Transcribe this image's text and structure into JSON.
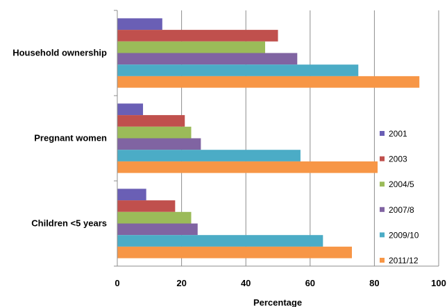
{
  "chart_data": {
    "type": "bar",
    "orientation": "horizontal",
    "categories": [
      "Household ownership",
      "Pregnant women",
      "Children <5 years"
    ],
    "series": [
      {
        "name": "2001",
        "color": "#6a5fb5",
        "values": [
          14,
          8,
          9
        ]
      },
      {
        "name": "2003",
        "color": "#c0504d",
        "values": [
          50,
          21,
          18
        ]
      },
      {
        "name": "2004/5",
        "color": "#9bbb59",
        "values": [
          46,
          23,
          23
        ]
      },
      {
        "name": "2007/8",
        "color": "#8064a2",
        "values": [
          56,
          26,
          25
        ]
      },
      {
        "name": "2009/10",
        "color": "#4bacc6",
        "values": [
          75,
          57,
          64
        ]
      },
      {
        "name": "2011/12",
        "color": "#f79646",
        "values": [
          94,
          81,
          73
        ]
      }
    ],
    "xlabel": "Percentage",
    "ylabel": "",
    "xlim": [
      0,
      100
    ],
    "xticks": [
      0,
      20,
      40,
      60,
      80,
      100
    ],
    "grid": "vertical",
    "legend": "right"
  }
}
